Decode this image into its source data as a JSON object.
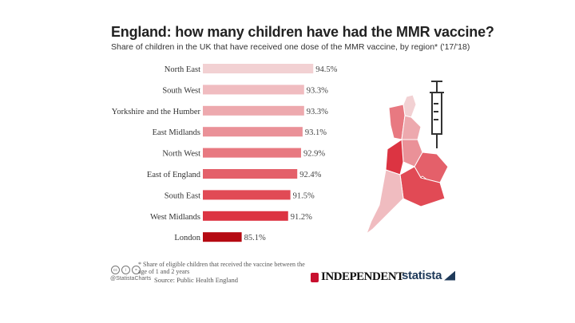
{
  "title": "England: how many children have had the MMR vaccine?",
  "subtitle": "Share of children in the UK that have received one dose of the MMR vaccine, by region* ('17/'18)",
  "chart_data": {
    "type": "bar",
    "orientation": "horizontal",
    "title": "England: how many children have had the MMR vaccine?",
    "categories": [
      "North East",
      "South West",
      "Yorkshire and the Humber",
      "East Midlands",
      "North West",
      "East of England",
      "South East",
      "West Midlands",
      "London"
    ],
    "values": [
      94.5,
      93.3,
      93.3,
      93.1,
      92.9,
      92.4,
      91.5,
      91.2,
      85.1
    ],
    "value_labels": [
      "94.5%",
      "93.3%",
      "93.3%",
      "93.1%",
      "92.9%",
      "92.4%",
      "91.5%",
      "91.2%",
      "85.1%"
    ],
    "colors": [
      "#f2d1d3",
      "#f0bcc0",
      "#eda9ae",
      "#ea9198",
      "#e87981",
      "#e4606a",
      "#e14a55",
      "#dc3442",
      "#b50a12"
    ],
    "unit": "%",
    "xlim": [
      0,
      100
    ],
    "xlabel": "",
    "ylabel": ""
  },
  "footnote": "* Share of eligible children that received the vaccine between the age of 1 and 2 years",
  "source": "Source: Public Health England",
  "handle": "@StatistaCharts",
  "logos": {
    "independent": "INDEPENDENT",
    "statista": "statista"
  },
  "icons": {
    "cc": [
      "cc-icon",
      "by-icon",
      "nd-icon"
    ],
    "syringe": "syringe-icon",
    "map": "england-map"
  }
}
